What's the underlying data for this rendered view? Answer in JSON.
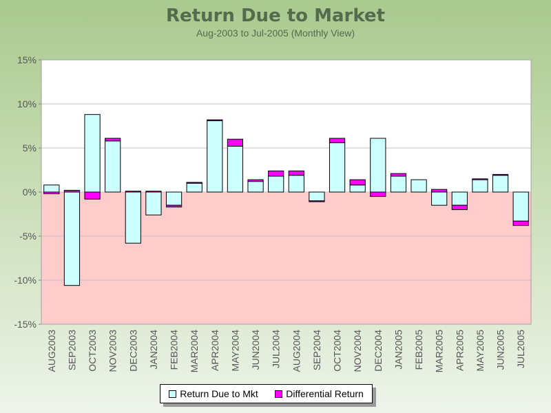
{
  "chart_data": {
    "type": "bar",
    "title": "Return Due to Market",
    "subtitle": "Aug-2003 to Jul-2005 (Monthly View)",
    "xlabel": "",
    "ylabel": "",
    "ylim": [
      -15,
      15
    ],
    "yticks": [
      15,
      10,
      5,
      0,
      -5,
      -10,
      -15
    ],
    "ytick_labels": [
      "15%",
      "10%",
      "5%",
      "0%",
      "-5%",
      "-10%",
      "-15%"
    ],
    "grid": true,
    "legend_position": "bottom",
    "categories": [
      "AUG2003",
      "SEP2003",
      "OCT2003",
      "NOV2003",
      "DEC2003",
      "JAN2004",
      "FEB2004",
      "MAR2004",
      "APR2004",
      "MAY2004",
      "JUN2004",
      "JUL2004",
      "AUG2004",
      "SEP2004",
      "OCT2004",
      "NOV2004",
      "DEC2004",
      "JAN2005",
      "FEB2005",
      "MAR2005",
      "APR2005",
      "MAY2005",
      "JUN2005",
      "JUL2005"
    ],
    "series": [
      {
        "name": "Return Due to Mkt",
        "color": "#ccffff",
        "values": [
          0.8,
          -10.6,
          8.8,
          5.8,
          -5.8,
          -2.6,
          -1.5,
          1.0,
          8.1,
          5.2,
          1.2,
          1.8,
          1.9,
          -1.0,
          5.6,
          0.8,
          6.1,
          1.8,
          1.4,
          -1.5,
          -1.5,
          1.4,
          1.9,
          -3.3
        ]
      },
      {
        "name": "Differential Return",
        "color": "#ff00ff",
        "values": [
          -0.2,
          0.2,
          -0.8,
          0.3,
          0.1,
          0.1,
          -0.2,
          0.1,
          0.1,
          0.8,
          0.2,
          0.6,
          0.5,
          -0.1,
          0.5,
          0.6,
          -0.5,
          0.3,
          0.0,
          0.3,
          -0.5,
          0.1,
          0.1,
          -0.5
        ]
      }
    ],
    "colors": {
      "positive_region": "#ffffff",
      "negative_region": "#ffcccc",
      "gridline": "#c0c0c0",
      "axis_text": "#555555"
    }
  }
}
